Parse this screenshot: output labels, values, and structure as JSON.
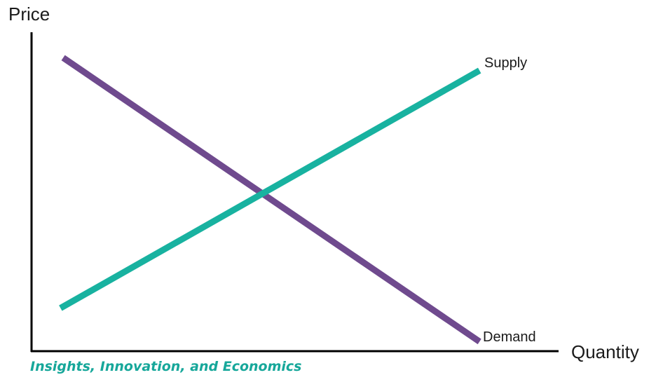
{
  "chart_data": {
    "type": "line",
    "xlabel": "Quantity",
    "ylabel": "Price",
    "xlim": [
      0,
      10
    ],
    "ylim": [
      0,
      10
    ],
    "grid": false,
    "series": [
      {
        "name": "Demand",
        "color": "#6f4a8e",
        "points": [
          [
            0.6,
            9.2
          ],
          [
            8.5,
            0.3
          ]
        ]
      },
      {
        "name": "Supply",
        "color": "#18b2a0",
        "points": [
          [
            0.55,
            1.35
          ],
          [
            8.5,
            8.8
          ]
        ]
      }
    ]
  },
  "footer": {
    "text": "Insights, Innovation, and Economics",
    "color": "#16a79a"
  }
}
